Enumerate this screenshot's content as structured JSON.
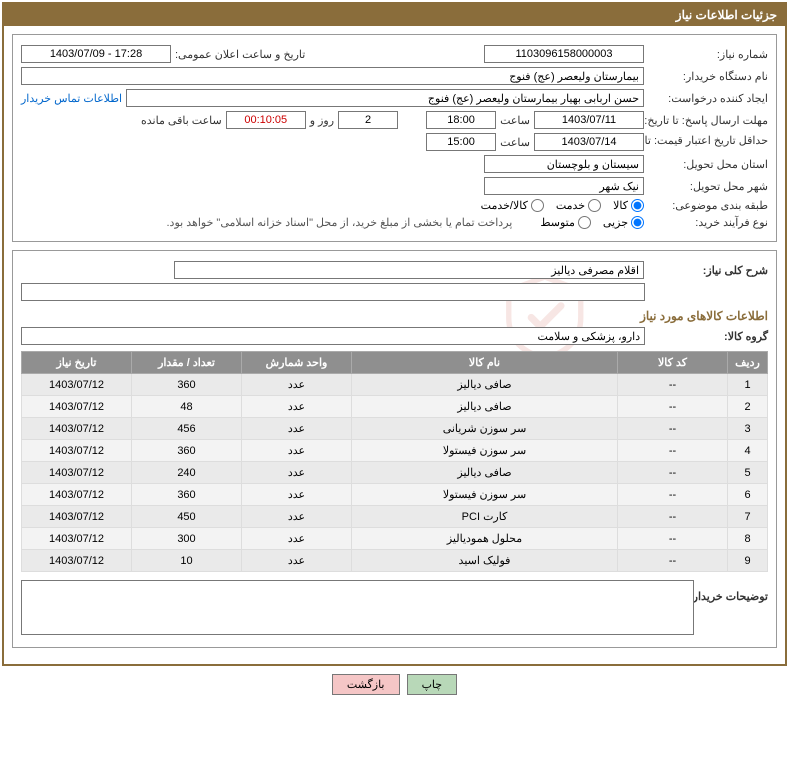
{
  "title": "جزئیات اطلاعات نیاز",
  "fields": {
    "need_no_label": "شماره نیاز:",
    "need_no": "1103096158000003",
    "announce_label": "تاریخ و ساعت اعلان عمومی:",
    "announce_val": "17:28 - 1403/07/09",
    "buyer_org_label": "نام دستگاه خریدار:",
    "buyer_org": "بیمارستان ولیعصر (عج) فنوج",
    "requester_label": "ایجاد کننده درخواست:",
    "requester": "حسن اربابی بهیار بیمارستان ولیعصر (عج) فنوج",
    "contact_link": "اطلاعات تماس خریدار",
    "deadline_label": "مهلت ارسال پاسخ: تا تاریخ:",
    "deadline_date": "1403/07/11",
    "deadline_time_label": "ساعت",
    "deadline_time": "18:00",
    "days_val": "2",
    "days_suffix": "روز و",
    "countdown": "00:10:05",
    "countdown_suffix": "ساعت باقی مانده",
    "price_valid_label": "حداقل تاریخ اعتبار قیمت: تا تاریخ:",
    "price_valid_date": "1403/07/14",
    "price_valid_time": "15:00",
    "province_label": "استان محل تحویل:",
    "province": "سیستان و بلوچستان",
    "city_label": "شهر محل تحویل:",
    "city": "نیک شهر",
    "category_label": "طبقه بندی موضوعی:",
    "radio_goods": "کالا",
    "radio_service": "خدمت",
    "radio_goods_service": "کالا/خدمت",
    "purchase_type_label": "نوع فرآیند خرید:",
    "radio_small": "جزیی",
    "radio_medium": "متوسط",
    "treasury_note": "پرداخت تمام یا بخشی از مبلغ خرید، از محل \"اسناد خزانه اسلامی\" خواهد بود.",
    "desc_title_label": "شرح کلی نیاز:",
    "desc_title": "اقلام مصرفی دیالیز",
    "goods_section": "اطلاعات کالاهای مورد نیاز",
    "group_label": "گروه کالا:",
    "group_val": "دارو، پزشکی و سلامت",
    "buyer_notes_label": "توضیحات خریدار:",
    "btn_print": "چاپ",
    "btn_back": "بازگشت"
  },
  "table": {
    "headers": [
      "ردیف",
      "کد کالا",
      "نام کالا",
      "واحد شمارش",
      "تعداد / مقدار",
      "تاریخ نیاز"
    ],
    "col_widths": [
      "40px",
      "110px",
      "auto",
      "110px",
      "110px",
      "110px"
    ],
    "rows": [
      [
        "1",
        "--",
        "صافی دیالیز",
        "عدد",
        "360",
        "1403/07/12"
      ],
      [
        "2",
        "--",
        "صافی دیالیز",
        "عدد",
        "48",
        "1403/07/12"
      ],
      [
        "3",
        "--",
        "سر سوزن شریانی",
        "عدد",
        "456",
        "1403/07/12"
      ],
      [
        "4",
        "--",
        "سر سوزن فیستولا",
        "عدد",
        "360",
        "1403/07/12"
      ],
      [
        "5",
        "--",
        "صافی دیالیز",
        "عدد",
        "240",
        "1403/07/12"
      ],
      [
        "6",
        "--",
        "سر سوزن فیستولا",
        "عدد",
        "360",
        "1403/07/12"
      ],
      [
        "7",
        "--",
        "کارت PCI",
        "عدد",
        "450",
        "1403/07/12"
      ],
      [
        "8",
        "--",
        "محلول همودیالیز",
        "عدد",
        "300",
        "1403/07/12"
      ],
      [
        "9",
        "--",
        "فولیک اسید",
        "عدد",
        "10",
        "1403/07/12"
      ]
    ]
  },
  "watermark": "AriaTender.net",
  "colors": {
    "bar": "#8a6d3b",
    "th_bg": "#8f8f8f"
  }
}
